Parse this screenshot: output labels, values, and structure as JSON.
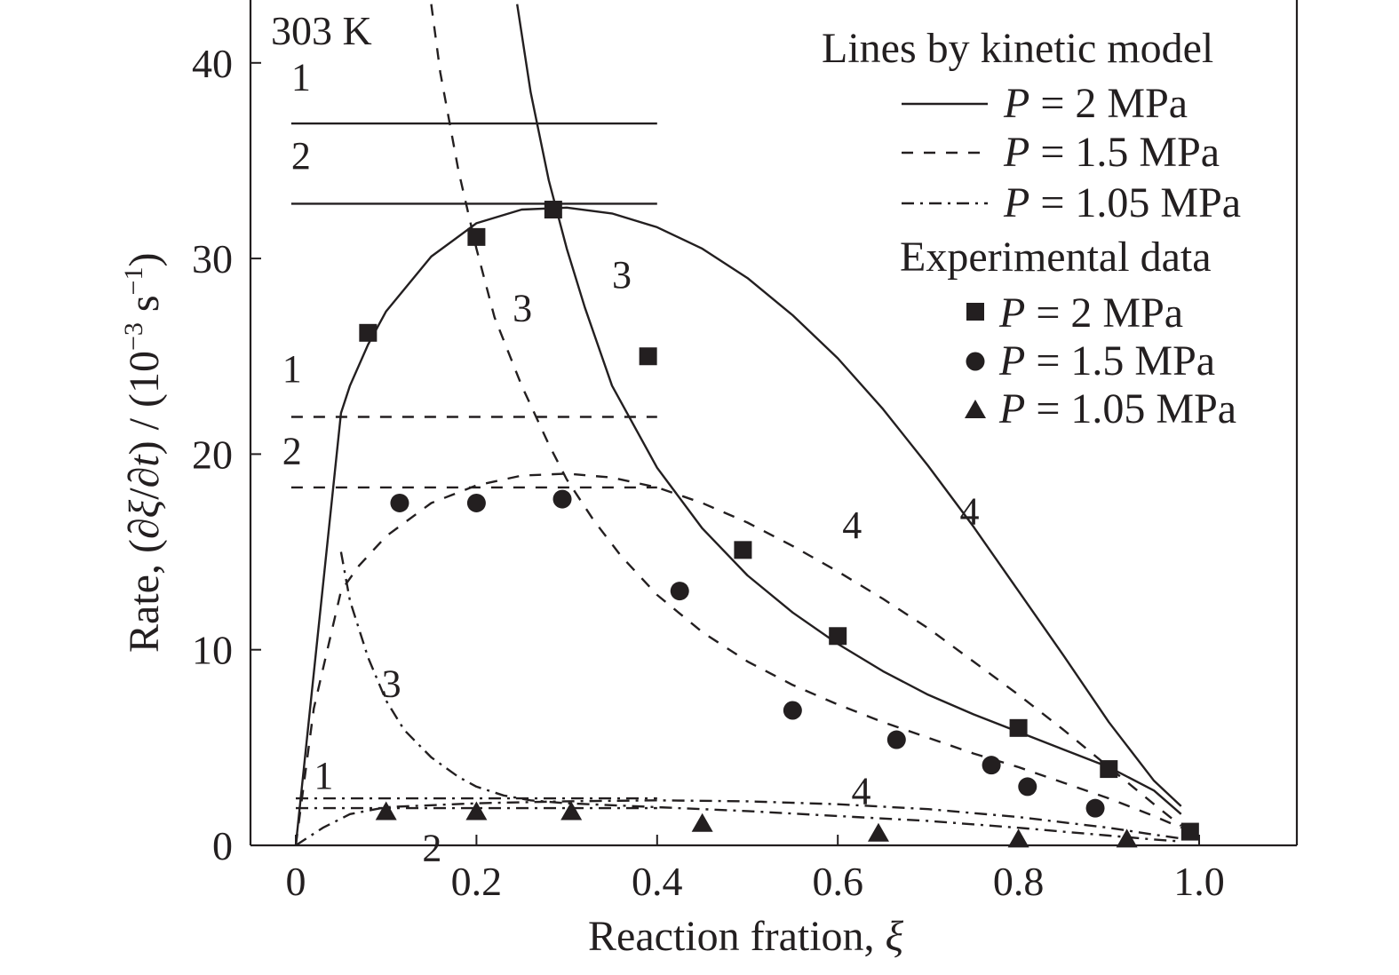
{
  "chart_data": {
    "type": "line",
    "annotation_temperature": "303 K",
    "xlabel": {
      "prefix": "Reaction fration, ",
      "symbol": "ξ"
    },
    "ylabel": {
      "prefix": "Rate, (∂",
      "xi": "ξ",
      "slash": "/∂",
      "t": "t",
      "suffix": ") / (10",
      "exp1": "−3",
      "mid": " s",
      "exp2": "−1",
      "close": ")"
    },
    "xlim": [
      -0.05,
      1.1
    ],
    "ylim": [
      0,
      43
    ],
    "x_ticks": [
      0,
      0.2,
      0.4,
      0.6,
      0.8,
      1.0
    ],
    "x_tick_labels": [
      "0",
      "0.2",
      "0.4",
      "0.6",
      "0.8",
      "1.0"
    ],
    "y_ticks": [
      0,
      10,
      20,
      30,
      40
    ],
    "y_tick_labels": [
      "0",
      "10",
      "20",
      "30",
      "40"
    ],
    "grid": false,
    "legend": {
      "position": "top-right",
      "lines_title": "Lines by kinetic model",
      "exp_title": "Experimental data",
      "entries": [
        {
          "p": "P",
          "rest": " = 2 MPa",
          "style": "solid"
        },
        {
          "p": "P",
          "rest": " = 1.5 MPa",
          "style": "dashed"
        },
        {
          "p": "P",
          "rest": " = 1.05 MPa",
          "style": "dashdot"
        }
      ],
      "exp_entries": [
        {
          "p": "P",
          "rest": " = 2 MPa",
          "marker": "square"
        },
        {
          "p": "P",
          "rest": " = 1.5 MPa",
          "marker": "circle"
        },
        {
          "p": "P",
          "rest": " = 1.05 MPa",
          "marker": "triangle"
        }
      ]
    },
    "series": [
      {
        "name": "P = 2 MPa",
        "style": "solid",
        "curve1": {
          "label": "1",
          "label_pos": [
            -0.005,
            38.6
          ],
          "x": [
            -0.005,
            0.4
          ],
          "y": [
            36.9,
            36.9
          ]
        },
        "curve2": {
          "label": "2",
          "label_pos": [
            -0.005,
            34.6
          ],
          "x": [
            -0.005,
            0.4
          ],
          "y": [
            32.8,
            32.8
          ]
        },
        "curve3": {
          "label": "3",
          "label_pos": [
            0.35,
            28.5
          ],
          "x": [
            0.245,
            0.26,
            0.28,
            0.3,
            0.32,
            0.35,
            0.4,
            0.45,
            0.5,
            0.55,
            0.6,
            0.65,
            0.7,
            0.75,
            0.8,
            0.85,
            0.9,
            0.95,
            0.98
          ],
          "y": [
            43,
            38.5,
            34,
            30.5,
            27.5,
            23.5,
            19.3,
            16.2,
            13.8,
            11.9,
            10.3,
            8.9,
            7.7,
            6.7,
            5.8,
            4.9,
            4.0,
            2.8,
            1.6
          ]
        },
        "curve4": {
          "label": "4",
          "label_pos": [
            0.735,
            16.4
          ],
          "x": [
            0,
            0.05,
            0.06,
            0.08,
            0.1,
            0.15,
            0.2,
            0.25,
            0.3,
            0.35,
            0.4,
            0.45,
            0.5,
            0.55,
            0.6,
            0.65,
            0.7,
            0.75,
            0.8,
            0.85,
            0.9,
            0.95,
            0.98
          ],
          "y": [
            0,
            22.1,
            23.5,
            25.6,
            27.3,
            30.1,
            31.8,
            32.5,
            32.6,
            32.3,
            31.6,
            30.5,
            29.0,
            27.1,
            24.9,
            22.3,
            19.4,
            16.3,
            13.0,
            9.7,
            6.3,
            3.3,
            2.0
          ]
        },
        "points": {
          "x": [
            0.08,
            0.2,
            0.285,
            0.39,
            0.495,
            0.6,
            0.8,
            0.9,
            0.99
          ],
          "y": [
            26.2,
            31.1,
            32.5,
            25.0,
            15.1,
            10.7,
            6.0,
            3.9,
            0.7
          ]
        }
      },
      {
        "name": "P = 1.5 MPa",
        "style": "dashed",
        "curve1": {
          "label": "1",
          "label_pos": [
            -0.015,
            23.7
          ],
          "x": [
            -0.005,
            0.4
          ],
          "y": [
            21.9,
            21.9
          ]
        },
        "curve2": {
          "label": "2",
          "label_pos": [
            -0.015,
            19.5
          ],
          "x": [
            -0.005,
            0.4
          ],
          "y": [
            18.3,
            18.3
          ]
        },
        "curve3": {
          "label": "3",
          "label_pos": [
            0.24,
            26.8
          ],
          "x": [
            0.15,
            0.16,
            0.18,
            0.2,
            0.22,
            0.25,
            0.28,
            0.3,
            0.33,
            0.36,
            0.4,
            0.45,
            0.5,
            0.55,
            0.6,
            0.65,
            0.7,
            0.75,
            0.8,
            0.85,
            0.9,
            0.95,
            0.98
          ],
          "y": [
            43,
            39.5,
            34.5,
            30.5,
            27,
            23.5,
            20.5,
            18.7,
            16.6,
            14.8,
            12.8,
            10.9,
            9.4,
            8.2,
            7.2,
            6.3,
            5.5,
            4.7,
            4.0,
            3.2,
            2.4,
            1.5,
            0.9
          ]
        },
        "curve4": {
          "label": "4",
          "label_pos": [
            0.605,
            15.7
          ],
          "x": [
            0.0,
            0.02,
            0.05,
            0.07,
            0.1,
            0.15,
            0.2,
            0.25,
            0.3,
            0.35,
            0.4,
            0.45,
            0.5,
            0.55,
            0.6,
            0.65,
            0.7,
            0.75,
            0.8,
            0.85,
            0.9,
            0.95,
            0.98
          ],
          "y": [
            0,
            7.0,
            13.0,
            14.3,
            15.8,
            17.5,
            18.4,
            18.9,
            19.0,
            18.8,
            18.3,
            17.5,
            16.5,
            15.3,
            14.0,
            12.6,
            11.1,
            9.4,
            7.7,
            5.9,
            4.0,
            2.1,
            1.0
          ]
        },
        "points": {
          "x": [
            0.115,
            0.2,
            0.295,
            0.425,
            0.55,
            0.665,
            0.77,
            0.81,
            0.885
          ],
          "y": [
            17.5,
            17.5,
            17.7,
            13.0,
            6.9,
            5.4,
            4.1,
            3.0,
            1.9
          ]
        }
      },
      {
        "name": "P = 1.05 MPa",
        "style": "dashdot",
        "curve1": {
          "label": "1",
          "label_pos": [
            0.02,
            2.9
          ],
          "x": [
            0.0,
            0.4
          ],
          "y": [
            2.4,
            2.4
          ]
        },
        "curve2": {
          "label": "2",
          "label_pos": [
            0.14,
            -0.8
          ],
          "x": [
            0.0,
            0.4
          ],
          "y": [
            1.9,
            1.9
          ]
        },
        "curve3": {
          "label": "3",
          "label_pos": [
            0.095,
            7.6
          ],
          "x": [
            0.05,
            0.06,
            0.08,
            0.1,
            0.12,
            0.15,
            0.18,
            0.2,
            0.23,
            0.26,
            0.3,
            0.35,
            0.4,
            0.5,
            0.6,
            0.7,
            0.8,
            0.9,
            0.95,
            0.98
          ],
          "y": [
            15.0,
            12.5,
            9.6,
            7.4,
            5.9,
            4.5,
            3.5,
            3.0,
            2.55,
            2.3,
            2.15,
            2.05,
            1.95,
            1.75,
            1.5,
            1.25,
            0.9,
            0.5,
            0.3,
            0.2
          ]
        },
        "curve4": {
          "label": "4",
          "label_pos": [
            0.615,
            2.1
          ],
          "x": [
            0.0,
            0.03,
            0.06,
            0.1,
            0.2,
            0.3,
            0.4,
            0.5,
            0.6,
            0.7,
            0.8,
            0.9,
            0.95,
            0.98
          ],
          "y": [
            0.0,
            0.9,
            1.6,
            1.95,
            2.15,
            2.25,
            2.3,
            2.25,
            2.1,
            1.85,
            1.45,
            0.9,
            0.55,
            0.35
          ]
        },
        "points": {
          "x": [
            0.1,
            0.2,
            0.305,
            0.45,
            0.645,
            0.8,
            0.92
          ],
          "y": [
            1.7,
            1.7,
            1.7,
            1.1,
            0.6,
            0.3,
            0.3
          ]
        }
      }
    ]
  }
}
